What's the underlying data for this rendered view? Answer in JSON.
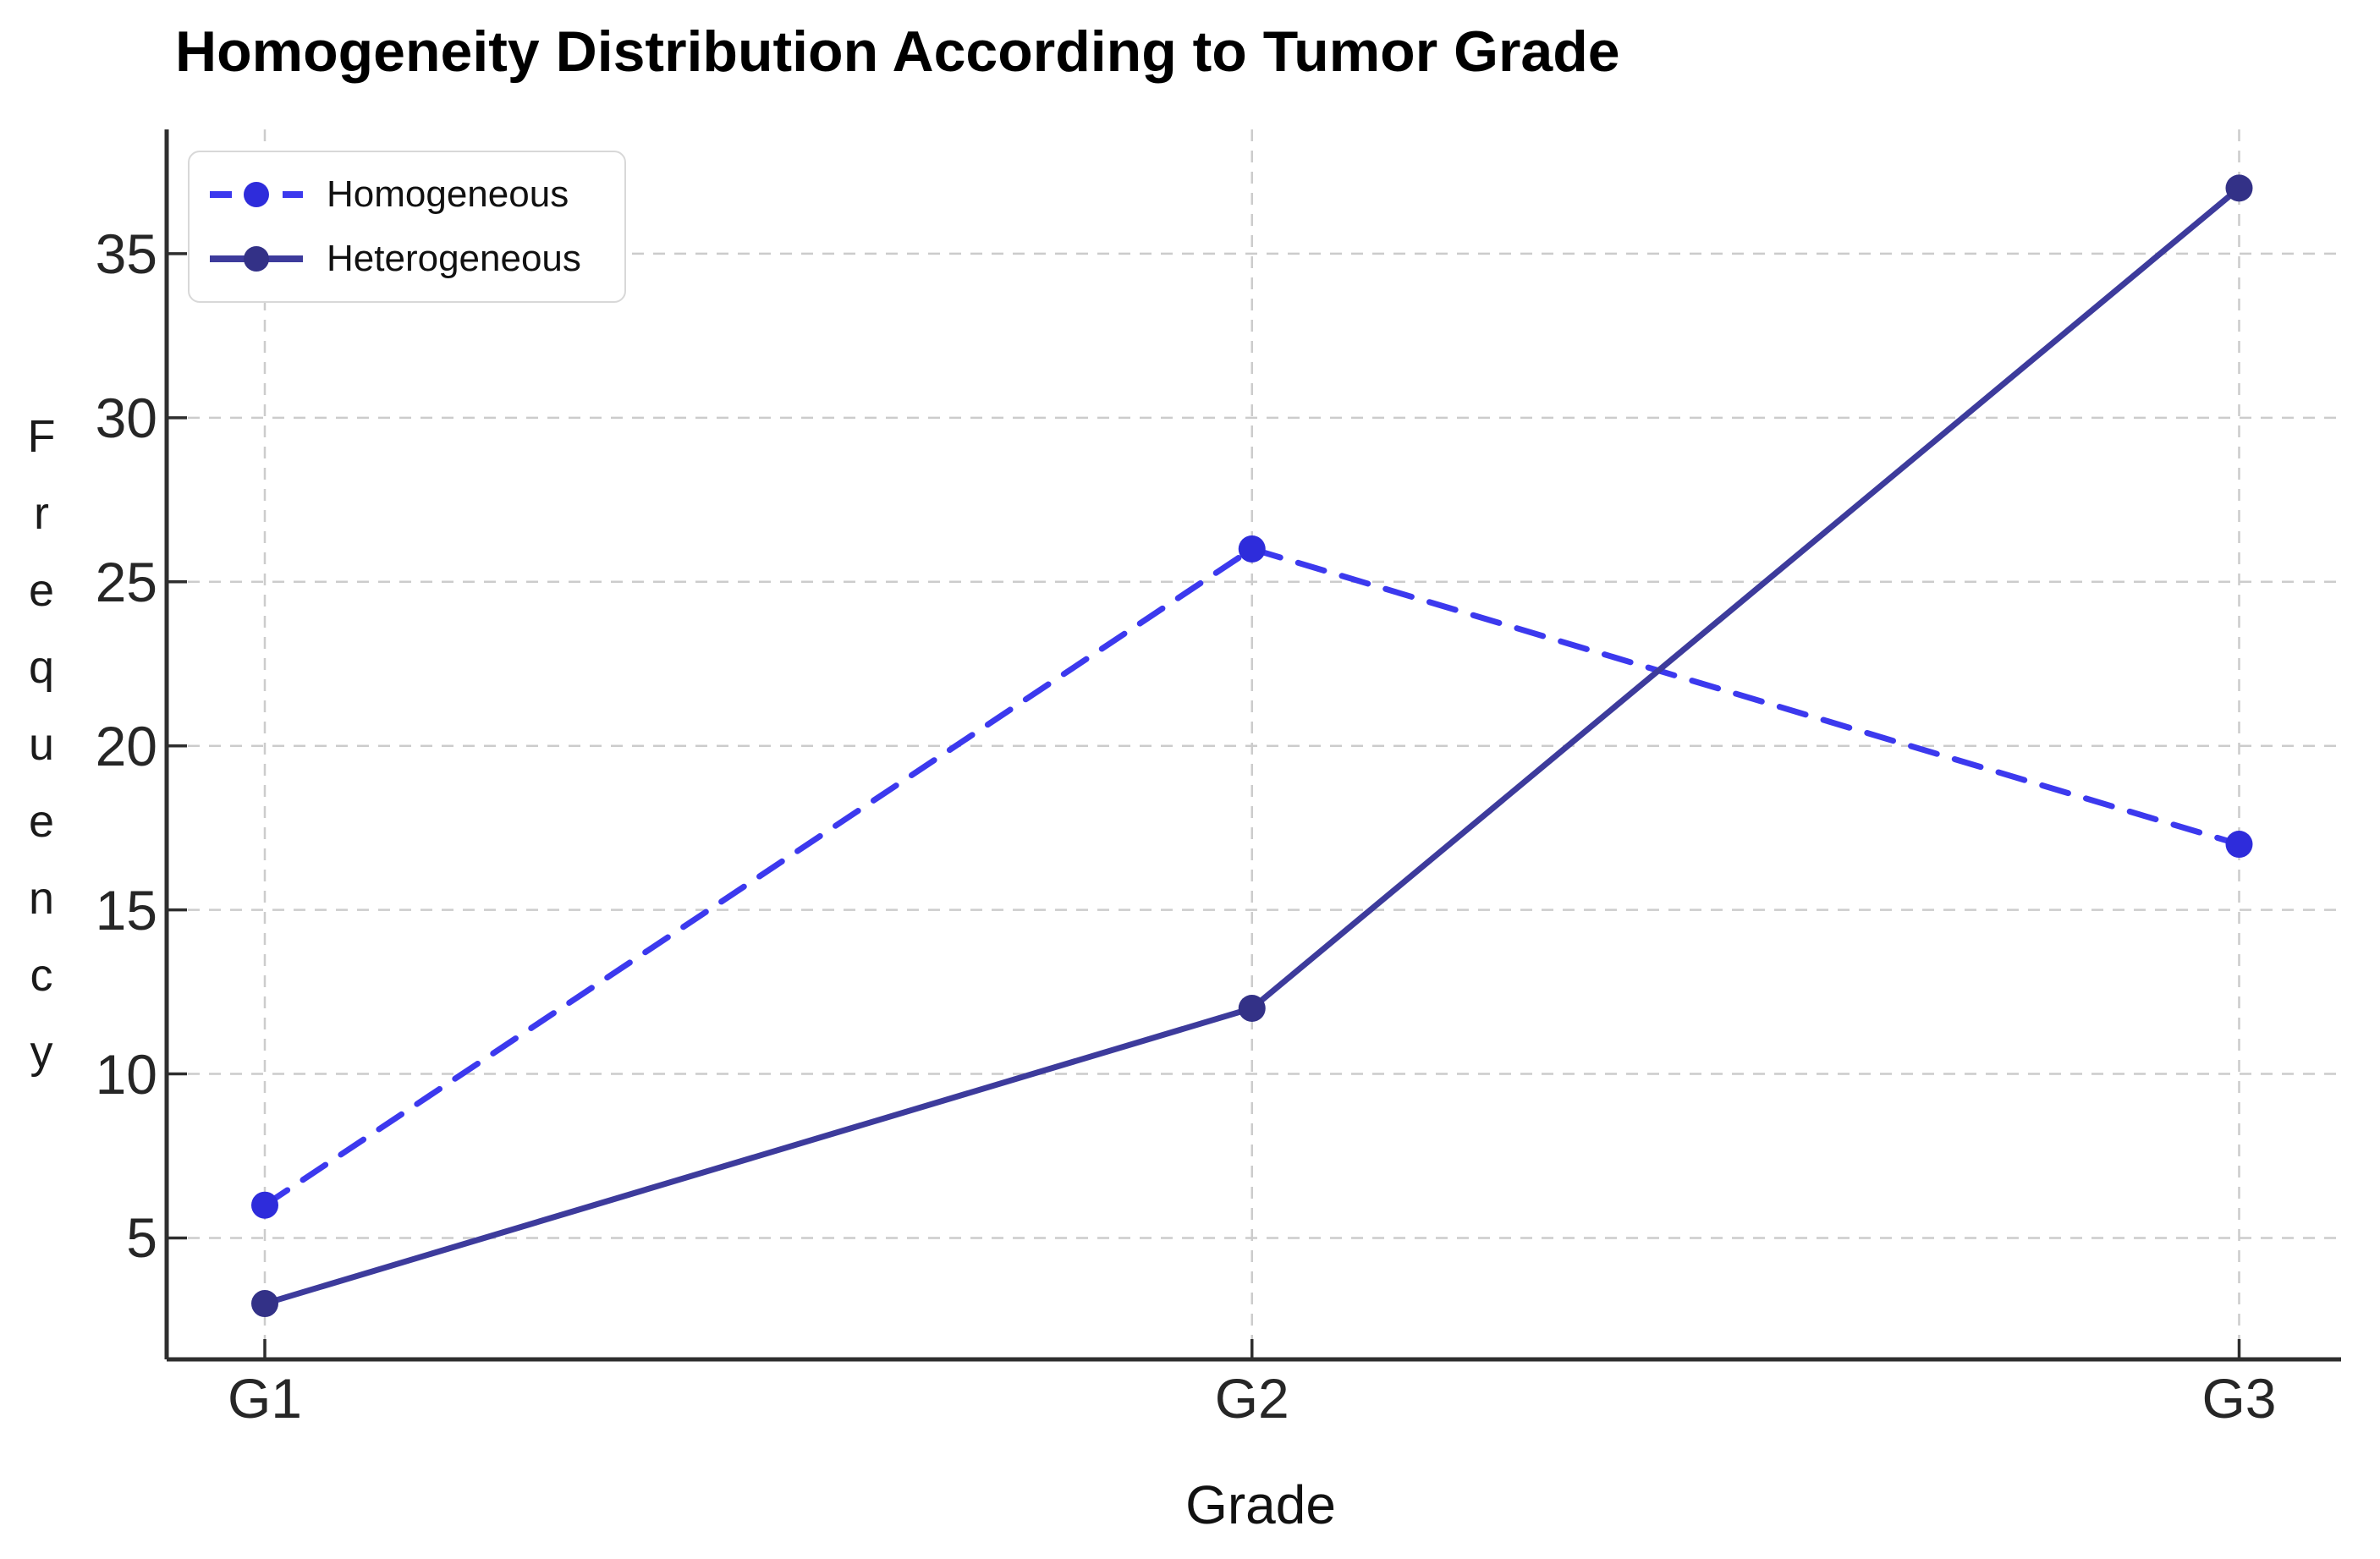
{
  "chart_data": {
    "type": "line",
    "title": "Homogeneity Distribution According to Tumor Grade",
    "categories": [
      "G1",
      "G2",
      "G3"
    ],
    "series": [
      {
        "name": "Homogeneous",
        "values": [
          6,
          26,
          17
        ],
        "line_style": "dashed",
        "line_color": "#3c39ee",
        "marker_color": "#2e2cdb",
        "marker": "circle"
      },
      {
        "name": "Heterogeneous",
        "values": [
          3,
          12,
          37
        ],
        "line_style": "solid",
        "line_color": "#3d3b9c",
        "marker_color": "#333187",
        "marker": "circle"
      }
    ],
    "xlabel": "Grade",
    "ylabel": "Frequency",
    "ylabel_rendering": "stacked-letters",
    "y_ticks": [
      5,
      10,
      15,
      20,
      25,
      30,
      35
    ],
    "ylim": [
      1.3,
      38.8
    ],
    "grid": true,
    "grid_style": "dashed",
    "grid_color": "#cccccc",
    "axis_color": "#2e2e2e",
    "tick_label_color": "#262626",
    "tick_direction": "in",
    "legend": {
      "position": "top-left",
      "entries": [
        "Homogeneous",
        "Heterogeneous"
      ]
    }
  }
}
